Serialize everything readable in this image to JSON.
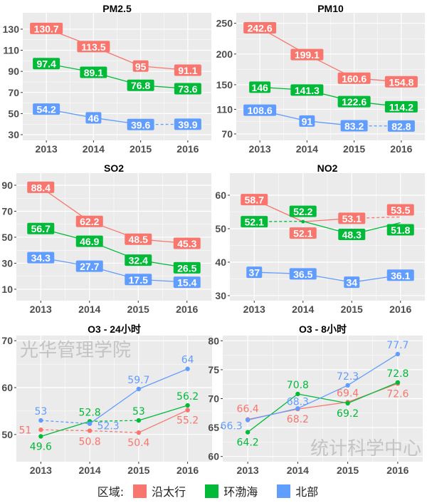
{
  "colors": {
    "沿太行": "#F8766D",
    "环渤海": "#00BA38",
    "北部": "#619CFF",
    "panel_bg": "#EBEBEB",
    "grid": "#FFFFFF"
  },
  "legend": {
    "title": "区域:",
    "items": [
      {
        "name": "沿太行",
        "color": "#F8766D"
      },
      {
        "name": "环渤海",
        "color": "#00BA38"
      },
      {
        "name": "北部",
        "color": "#619CFF"
      }
    ]
  },
  "watermarks": {
    "left": "光华管理学院",
    "right": "统计科学中心"
  },
  "chart_data": [
    {
      "type": "line",
      "title": "PM2.5",
      "label_style": "boxed",
      "categories": [
        "2013",
        "2014",
        "2015",
        "2016"
      ],
      "ylim": [
        24.6,
        145.5
      ],
      "yticks": [
        30,
        50,
        70,
        90,
        110,
        130
      ],
      "grid": true,
      "series": [
        {
          "name": "沿太行",
          "values": [
            130.7,
            113.5,
            95,
            91.1
          ],
          "dashed_segments": []
        },
        {
          "name": "环渤海",
          "values": [
            97.4,
            89.1,
            76.8,
            73.6
          ],
          "dashed_segments": []
        },
        {
          "name": "北部",
          "values": [
            54.2,
            46,
            39.6,
            39.9
          ],
          "dashed_segments": [
            2
          ]
        }
      ]
    },
    {
      "type": "line",
      "title": "PM10",
      "label_style": "boxed",
      "categories": [
        "2013",
        "2014",
        "2015",
        "2016"
      ],
      "ylim": [
        59.5,
        267
      ],
      "yticks": [
        70,
        110,
        150,
        200,
        250
      ],
      "grid": true,
      "series": [
        {
          "name": "沿太行",
          "values": [
            242.6,
            199.1,
            160.6,
            154.8
          ],
          "dashed_segments": []
        },
        {
          "name": "环渤海",
          "values": [
            146,
            141.3,
            122.6,
            114.2
          ],
          "dashed_segments": []
        },
        {
          "name": "北部",
          "values": [
            108.6,
            91,
            83.2,
            82.8
          ],
          "dashed_segments": [
            2
          ]
        }
      ]
    },
    {
      "type": "line",
      "title": "SO2",
      "label_style": "boxed",
      "categories": [
        "2013",
        "2014",
        "2015",
        "2016"
      ],
      "ylim": [
        1.2,
        99.3
      ],
      "yticks": [
        10,
        30,
        50,
        70,
        90
      ],
      "grid": true,
      "series": [
        {
          "name": "沿太行",
          "values": [
            88.4,
            62.2,
            48.5,
            45.3
          ],
          "dashed_segments": []
        },
        {
          "name": "环渤海",
          "values": [
            56.7,
            46.9,
            32.4,
            26.5
          ],
          "dashed_segments": []
        },
        {
          "name": "北部",
          "values": [
            34.3,
            27.7,
            17.5,
            15.4
          ],
          "dashed_segments": []
        }
      ]
    },
    {
      "type": "line",
      "title": "NO2",
      "label_style": "boxed",
      "categories": [
        "2013",
        "2014",
        "2015",
        "2016"
      ],
      "ylim": [
        28.5,
        66.6
      ],
      "yticks": [
        30,
        40,
        50,
        60
      ],
      "grid": true,
      "series": [
        {
          "name": "沿太行",
          "values": [
            58.7,
            52.1,
            53.1,
            53.5
          ],
          "dashed_segments": [
            2
          ]
        },
        {
          "name": "环渤海",
          "values": [
            52.1,
            52.2,
            48.3,
            51.8
          ],
          "dashed_segments": [
            0
          ]
        },
        {
          "name": "北部",
          "values": [
            37,
            36.5,
            34,
            36.1
          ],
          "dashed_segments": []
        }
      ]
    },
    {
      "type": "line",
      "title": "O3 - 24小时",
      "label_style": "text",
      "categories": [
        "2013",
        "2014",
        "2015",
        "2016"
      ],
      "ylim": [
        44.2,
        71.1
      ],
      "yticks": [
        50,
        60,
        70
      ],
      "grid": true,
      "series": [
        {
          "name": "沿太行",
          "values": [
            51,
            50.8,
            50.4,
            55.2
          ],
          "dashed_segments": [
            0,
            1
          ]
        },
        {
          "name": "环渤海",
          "values": [
            49.6,
            52.8,
            53,
            56.2
          ],
          "dashed_segments": [
            1
          ]
        },
        {
          "name": "北部",
          "values": [
            53,
            52.3,
            59.7,
            64
          ],
          "dashed_segments": [
            0
          ]
        }
      ]
    },
    {
      "type": "line",
      "title": "O3 - 8小时",
      "label_style": "text",
      "categories": [
        "2013",
        "2014",
        "2015",
        "2016"
      ],
      "ylim": [
        59.1,
        80.9
      ],
      "yticks": [
        60,
        65,
        70,
        75,
        80
      ],
      "grid": true,
      "series": [
        {
          "name": "沿太行",
          "values": [
            66.4,
            68.2,
            69.4,
            72.6
          ],
          "dashed_segments": []
        },
        {
          "name": "环渤海",
          "values": [
            64.2,
            70.8,
            69.2,
            72.8
          ],
          "dashed_segments": []
        },
        {
          "name": "北部",
          "values": [
            66.3,
            68.3,
            72.3,
            77.7
          ],
          "dashed_segments": []
        }
      ]
    }
  ]
}
